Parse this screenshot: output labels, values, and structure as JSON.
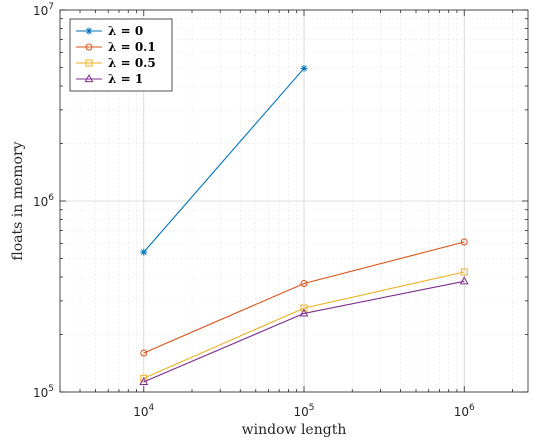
{
  "chart_data": {
    "type": "line",
    "xlabel": "window length",
    "ylabel": "floats in memory",
    "xscale": "log",
    "yscale": "log",
    "xlim": [
      3000,
      2500000
    ],
    "ylim": [
      100000,
      10000000
    ],
    "grid": true,
    "minor_grid": true,
    "legend_position": "top-left",
    "x_ticks": [
      10000,
      100000,
      1000000
    ],
    "x_tick_labels": [
      {
        "base": "10",
        "exp": "4"
      },
      {
        "base": "10",
        "exp": "5"
      },
      {
        "base": "10",
        "exp": "6"
      }
    ],
    "y_ticks": [
      100000,
      1000000,
      10000000
    ],
    "y_tick_labels": [
      {
        "base": "10",
        "exp": "5"
      },
      {
        "base": "10",
        "exp": "6"
      },
      {
        "base": "10",
        "exp": "7"
      }
    ],
    "series": [
      {
        "name": "λ = 0",
        "color": "#0072BD",
        "marker": "star",
        "x": [
          10000,
          100000
        ],
        "values": [
          540000,
          4950000
        ]
      },
      {
        "name": "λ = 0.1",
        "color": "#D95319",
        "marker": "circle",
        "x": [
          10000,
          100000,
          1000000
        ],
        "values": [
          160000,
          370000,
          610000
        ]
      },
      {
        "name": "λ = 0.5",
        "color": "#EDB120",
        "marker": "square",
        "x": [
          10000,
          100000,
          1000000
        ],
        "values": [
          118000,
          275000,
          425000
        ]
      },
      {
        "name": "λ = 1",
        "color": "#7E2F8E",
        "marker": "triangle",
        "x": [
          10000,
          100000,
          1000000
        ],
        "values": [
          113000,
          258000,
          380000
        ]
      }
    ]
  }
}
